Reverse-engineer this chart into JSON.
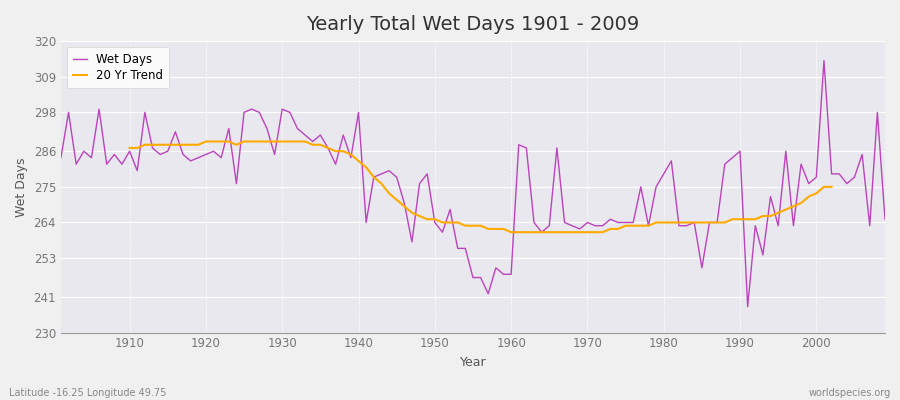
{
  "title": "Yearly Total Wet Days 1901 - 2009",
  "xlabel": "Year",
  "ylabel": "Wet Days",
  "xlim": [
    1901,
    2009
  ],
  "ylim": [
    230,
    320
  ],
  "yticks": [
    230,
    241,
    253,
    264,
    275,
    286,
    298,
    309,
    320
  ],
  "fig_bg_color": "#f0f0f0",
  "plot_bg_color": "#e8e8ee",
  "wet_days_color": "#bb44bb",
  "trend_color": "#ffaa00",
  "footer_left": "Latitude -16.25 Longitude 49.75",
  "footer_right": "worldspecies.org",
  "years": [
    1901,
    1902,
    1903,
    1904,
    1905,
    1906,
    1907,
    1908,
    1909,
    1910,
    1911,
    1912,
    1913,
    1914,
    1915,
    1916,
    1917,
    1918,
    1919,
    1920,
    1921,
    1922,
    1923,
    1924,
    1925,
    1926,
    1927,
    1928,
    1929,
    1930,
    1931,
    1932,
    1933,
    1934,
    1935,
    1936,
    1937,
    1938,
    1939,
    1940,
    1941,
    1942,
    1943,
    1944,
    1945,
    1946,
    1947,
    1948,
    1949,
    1950,
    1951,
    1952,
    1953,
    1954,
    1955,
    1956,
    1957,
    1958,
    1959,
    1960,
    1961,
    1962,
    1963,
    1964,
    1965,
    1966,
    1967,
    1968,
    1969,
    1970,
    1971,
    1972,
    1973,
    1974,
    1975,
    1976,
    1977,
    1978,
    1979,
    1980,
    1981,
    1982,
    1983,
    1984,
    1985,
    1986,
    1987,
    1988,
    1989,
    1990,
    1991,
    1992,
    1993,
    1994,
    1995,
    1996,
    1997,
    1998,
    1999,
    2000,
    2001,
    2002,
    2003,
    2004,
    2005,
    2006,
    2007,
    2008,
    2009
  ],
  "wet_days": [
    284,
    298,
    282,
    286,
    284,
    299,
    282,
    285,
    282,
    286,
    280,
    298,
    287,
    285,
    286,
    292,
    285,
    283,
    284,
    285,
    286,
    284,
    293,
    276,
    298,
    299,
    298,
    293,
    285,
    299,
    298,
    293,
    291,
    289,
    291,
    287,
    282,
    291,
    284,
    298,
    264,
    278,
    279,
    280,
    278,
    270,
    258,
    276,
    279,
    264,
    261,
    268,
    256,
    256,
    247,
    247,
    242,
    250,
    248,
    248,
    288,
    287,
    264,
    261,
    263,
    287,
    264,
    263,
    262,
    264,
    263,
    263,
    265,
    264,
    264,
    264,
    275,
    263,
    275,
    279,
    283,
    263,
    263,
    264,
    250,
    264,
    264,
    282,
    284,
    286,
    238,
    263,
    254,
    272,
    263,
    286,
    263,
    282,
    276,
    278,
    314,
    279,
    279,
    276,
    278,
    285,
    263,
    298,
    265
  ],
  "trend": [
    null,
    null,
    null,
    null,
    null,
    null,
    null,
    null,
    null,
    287,
    287,
    288,
    288,
    288,
    288,
    288,
    288,
    288,
    288,
    289,
    289,
    289,
    289,
    288,
    289,
    289,
    289,
    289,
    289,
    289,
    289,
    289,
    289,
    288,
    288,
    287,
    286,
    286,
    285,
    283,
    281,
    278,
    276,
    273,
    271,
    269,
    267,
    266,
    265,
    265,
    264,
    264,
    264,
    263,
    263,
    263,
    262,
    262,
    262,
    261,
    261,
    261,
    261,
    261,
    261,
    261,
    261,
    261,
    261,
    261,
    261,
    261,
    262,
    262,
    263,
    263,
    263,
    263,
    264,
    264,
    264,
    264,
    264,
    264,
    264,
    264,
    264,
    264,
    265,
    265,
    265,
    265,
    266,
    266,
    267,
    268,
    269,
    270,
    272,
    273,
    275,
    275,
    null,
    null,
    null,
    null,
    null,
    null,
    null
  ]
}
